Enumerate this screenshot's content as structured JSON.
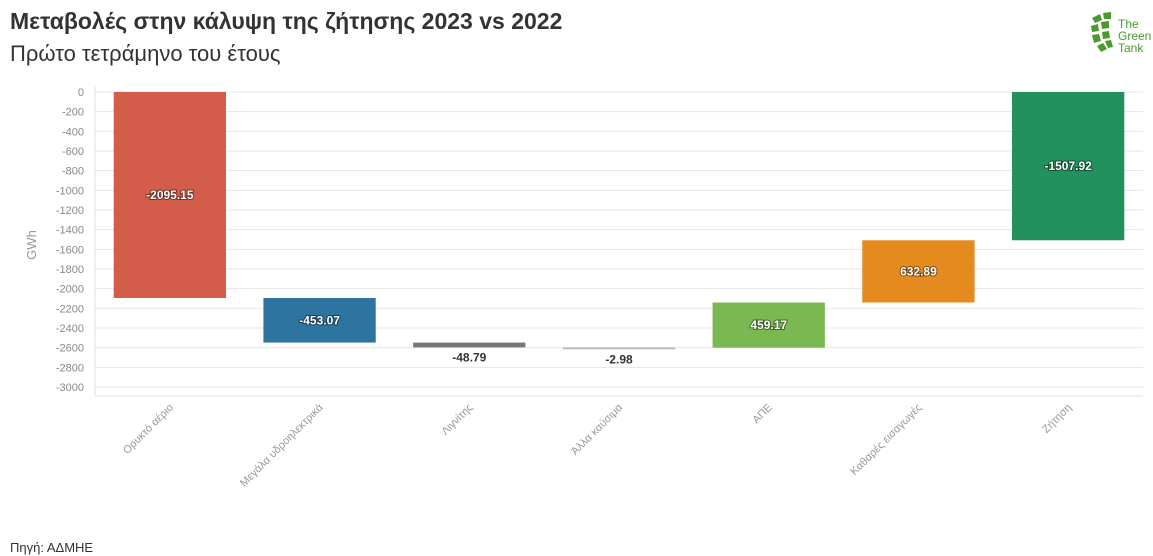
{
  "header": {
    "title": "Μεταβολές στην κάλυψη της ζήτησης 2023 vs 2022",
    "subtitle": "Πρώτο τετράμηνο του έτους"
  },
  "logo": {
    "line1": "The",
    "line2": "Green",
    "line3": "Tank",
    "color": "#4a9a2e"
  },
  "footer": {
    "source": "Πηγή: ΑΔΜΗΕ"
  },
  "chart_data": {
    "type": "bar",
    "subtype": "waterfall",
    "title": "Μεταβολές στην κάλυψη της ζήτησης 2023 vs 2022",
    "subtitle": "Πρώτο τετράμηνο του έτους",
    "xlabel": "",
    "ylabel": "GWh",
    "ylim": [
      -3000,
      0
    ],
    "yticks": [
      0,
      -200,
      -400,
      -600,
      -800,
      -1000,
      -1200,
      -1400,
      -1600,
      -1800,
      -2000,
      -2200,
      -2400,
      -2600,
      -2800,
      -3000
    ],
    "grid": true,
    "categories": [
      "Ορυκτό αέριο",
      "Μεγάλα υδροηλεκτρικά",
      "Λιγνίτης",
      "Άλλα καύσιμα",
      "ΑΠΕ",
      "Καθαρές εισαγωγές",
      "Ζήτηση"
    ],
    "values": [
      -2095.15,
      -453.07,
      -48.79,
      -2.98,
      459.17,
      632.89,
      -1507.92
    ],
    "value_labels": [
      "-2095.15",
      "-453.07",
      "-48.79",
      "-2.98",
      "459.17",
      "632.89",
      "-1507.92"
    ],
    "total_index": 6,
    "colors": [
      "#d35c4a",
      "#2e74a0",
      "#777777",
      "#bbbbbb",
      "#7ab852",
      "#e58a1f",
      "#23915e"
    ]
  }
}
